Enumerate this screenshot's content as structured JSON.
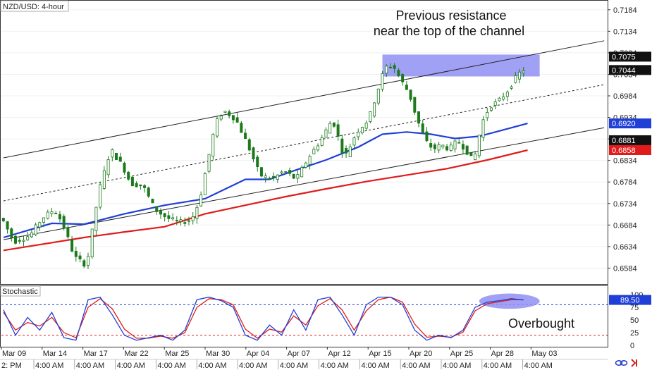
{
  "window": {
    "symbol_label": "NZD/USD: 4-hour",
    "indicator_label": "Stochastic",
    "footer_left_text": "2: PM"
  },
  "annotations": {
    "resistance_line1": "Previous resistance",
    "resistance_line2": "near the top of the channel",
    "overbought": "Overbought"
  },
  "colors": {
    "candle": "#1c7a1c",
    "sma_blue": "#1f3fd6",
    "sma_red": "#e01b1b",
    "channel": "#222222",
    "resistance_zone": "#8f8ff2",
    "stoch_k": "#1f3fd6",
    "stoch_d": "#e01b1b"
  },
  "icons": [
    "link-icon",
    "scroll-arrow-icon"
  ],
  "chart_data": {
    "type": "candlestick",
    "price_axis": {
      "ticks": [
        "0.7184",
        "0.7134",
        "0.7084",
        "0.7034",
        "0.6984",
        "0.6934",
        "0.6884",
        "0.6834",
        "0.6784",
        "0.6734",
        "0.6684",
        "0.6634",
        "0.6584"
      ],
      "ylim": [
        0.6547,
        0.7205
      ]
    },
    "price_tags": [
      {
        "label": "0.7075",
        "value": 0.7075,
        "style": "black"
      },
      {
        "label": "0.7044",
        "value": 0.7044,
        "style": "black"
      },
      {
        "label": "0.6920",
        "value": 0.692,
        "style": "blue"
      },
      {
        "label": "0.6881",
        "value": 0.6881,
        "style": "black"
      },
      {
        "label": "0.6858",
        "value": 0.6858,
        "style": "red"
      }
    ],
    "date_labels": [
      "Mar 09",
      "Mar 14",
      "Mar 17",
      "Mar 22",
      "Mar 25",
      "Mar 30",
      "Apr 04",
      "Apr 07",
      "Apr 12",
      "Apr 15",
      "Apr 20",
      "Apr 25",
      "Apr 28",
      "May 03"
    ],
    "time_labels": [
      "4:00 AM",
      "4:00 AM",
      "4:00 AM",
      "4:00 AM",
      "4:00 AM",
      "4:00 AM",
      "4:00 AM",
      "4:00 AM",
      "4:00 AM",
      "4:00 AM",
      "4:00 AM",
      "4:00 AM",
      "4:00 AM"
    ],
    "price_path": [
      [
        0,
        0.67
      ],
      [
        3,
        0.6645
      ],
      [
        7,
        0.666
      ],
      [
        10,
        0.67
      ],
      [
        13,
        0.672
      ],
      [
        15,
        0.669
      ],
      [
        18,
        0.661
      ],
      [
        21,
        0.659
      ],
      [
        24,
        0.676
      ],
      [
        27,
        0.686
      ],
      [
        30,
        0.682
      ],
      [
        32,
        0.678
      ],
      [
        35,
        0.6775
      ],
      [
        38,
        0.672
      ],
      [
        41,
        0.67
      ],
      [
        44,
        0.669
      ],
      [
        47,
        0.6695
      ],
      [
        49,
        0.674
      ],
      [
        51,
        0.683
      ],
      [
        53,
        0.692
      ],
      [
        55,
        0.695
      ],
      [
        58,
        0.693
      ],
      [
        61,
        0.687
      ],
      [
        64,
        0.68
      ],
      [
        67,
        0.679
      ],
      [
        70,
        0.681
      ],
      [
        73,
        0.679
      ],
      [
        76,
        0.684
      ],
      [
        79,
        0.688
      ],
      [
        82,
        0.693
      ],
      [
        85,
        0.684
      ],
      [
        88,
        0.69
      ],
      [
        91,
        0.693
      ],
      [
        93,
        0.699
      ],
      [
        95,
        0.705
      ],
      [
        97,
        0.7055
      ],
      [
        99,
        0.702
      ],
      [
        101,
        0.699
      ],
      [
        103,
        0.693
      ],
      [
        105,
        0.688
      ],
      [
        107,
        0.686
      ],
      [
        109,
        0.687
      ],
      [
        111,
        0.686
      ],
      [
        113,
        0.688
      ],
      [
        115,
        0.686
      ],
      [
        117,
        0.683
      ],
      [
        119,
        0.692
      ],
      [
        121,
        0.696
      ],
      [
        123,
        0.697
      ],
      [
        125,
        0.699
      ],
      [
        127,
        0.702
      ],
      [
        129,
        0.7044
      ]
    ],
    "sma_blue": [
      [
        0,
        0.6655
      ],
      [
        12,
        0.6688
      ],
      [
        20,
        0.6686
      ],
      [
        30,
        0.671
      ],
      [
        40,
        0.673
      ],
      [
        50,
        0.6745
      ],
      [
        60,
        0.679
      ],
      [
        66,
        0.679
      ],
      [
        72,
        0.681
      ],
      [
        80,
        0.6835
      ],
      [
        88,
        0.6865
      ],
      [
        94,
        0.6895
      ],
      [
        100,
        0.69
      ],
      [
        106,
        0.6895
      ],
      [
        112,
        0.6885
      ],
      [
        118,
        0.689
      ],
      [
        124,
        0.6905
      ],
      [
        130,
        0.692
      ]
    ],
    "sma_red": [
      [
        0,
        0.6625
      ],
      [
        10,
        0.664
      ],
      [
        20,
        0.6655
      ],
      [
        30,
        0.6668
      ],
      [
        40,
        0.668
      ],
      [
        50,
        0.671
      ],
      [
        60,
        0.673
      ],
      [
        70,
        0.675
      ],
      [
        80,
        0.6768
      ],
      [
        90,
        0.6785
      ],
      [
        100,
        0.68
      ],
      [
        110,
        0.6815
      ],
      [
        120,
        0.6835
      ],
      [
        130,
        0.6858
      ]
    ],
    "channel_lines": [
      {
        "name": "upper",
        "style": "solid",
        "from": [
          0,
          0.684
        ],
        "to": [
          149,
          0.7112
        ]
      },
      {
        "name": "middle",
        "style": "dashed",
        "from": [
          0,
          0.674
        ],
        "to": [
          149,
          0.701
        ]
      },
      {
        "name": "lower",
        "style": "solid",
        "from": [
          0,
          0.665
        ],
        "to": [
          149,
          0.691
        ]
      }
    ],
    "resistance_zone": {
      "x_start": 94,
      "x_end": 133,
      "price_low": 0.7034,
      "price_high": 0.7075
    },
    "stochastic": {
      "axis_ticks": [
        "100",
        "75",
        "50",
        "25",
        "0"
      ],
      "levels": [
        80,
        20
      ],
      "current_value": 89.5,
      "k_path": [
        [
          0,
          70
        ],
        [
          3,
          20
        ],
        [
          6,
          55
        ],
        [
          9,
          30
        ],
        [
          12,
          65
        ],
        [
          15,
          15
        ],
        [
          18,
          10
        ],
        [
          21,
          90
        ],
        [
          24,
          95
        ],
        [
          27,
          60
        ],
        [
          30,
          20
        ],
        [
          33,
          10
        ],
        [
          36,
          15
        ],
        [
          39,
          20
        ],
        [
          42,
          10
        ],
        [
          45,
          30
        ],
        [
          48,
          90
        ],
        [
          51,
          95
        ],
        [
          54,
          88
        ],
        [
          57,
          75
        ],
        [
          60,
          20
        ],
        [
          63,
          10
        ],
        [
          66,
          40
        ],
        [
          69,
          20
        ],
        [
          72,
          70
        ],
        [
          75,
          30
        ],
        [
          78,
          90
        ],
        [
          81,
          95
        ],
        [
          84,
          60
        ],
        [
          87,
          20
        ],
        [
          90,
          80
        ],
        [
          93,
          95
        ],
        [
          96,
          95
        ],
        [
          99,
          80
        ],
        [
          102,
          30
        ],
        [
          105,
          10
        ],
        [
          108,
          20
        ],
        [
          111,
          15
        ],
        [
          114,
          30
        ],
        [
          117,
          75
        ],
        [
          120,
          85
        ],
        [
          123,
          88
        ],
        [
          126,
          92
        ],
        [
          129,
          89.5
        ]
      ],
      "d_path": [
        [
          0,
          65
        ],
        [
          3,
          30
        ],
        [
          6,
          45
        ],
        [
          9,
          38
        ],
        [
          12,
          55
        ],
        [
          15,
          25
        ],
        [
          18,
          15
        ],
        [
          21,
          75
        ],
        [
          24,
          92
        ],
        [
          27,
          72
        ],
        [
          30,
          32
        ],
        [
          33,
          14
        ],
        [
          36,
          14
        ],
        [
          39,
          18
        ],
        [
          42,
          14
        ],
        [
          45,
          25
        ],
        [
          48,
          75
        ],
        [
          51,
          92
        ],
        [
          54,
          90
        ],
        [
          57,
          80
        ],
        [
          60,
          32
        ],
        [
          63,
          14
        ],
        [
          66,
          32
        ],
        [
          69,
          26
        ],
        [
          72,
          58
        ],
        [
          75,
          40
        ],
        [
          78,
          78
        ],
        [
          81,
          92
        ],
        [
          84,
          70
        ],
        [
          87,
          30
        ],
        [
          90,
          68
        ],
        [
          93,
          90
        ],
        [
          96,
          95
        ],
        [
          99,
          85
        ],
        [
          102,
          42
        ],
        [
          105,
          16
        ],
        [
          108,
          18
        ],
        [
          111,
          16
        ],
        [
          114,
          26
        ],
        [
          117,
          68
        ],
        [
          120,
          82
        ],
        [
          123,
          86
        ],
        [
          126,
          90
        ],
        [
          129,
          90
        ]
      ],
      "highlight": {
        "x_start": 118,
        "x_end": 133,
        "low": 72,
        "high": 102
      }
    }
  }
}
